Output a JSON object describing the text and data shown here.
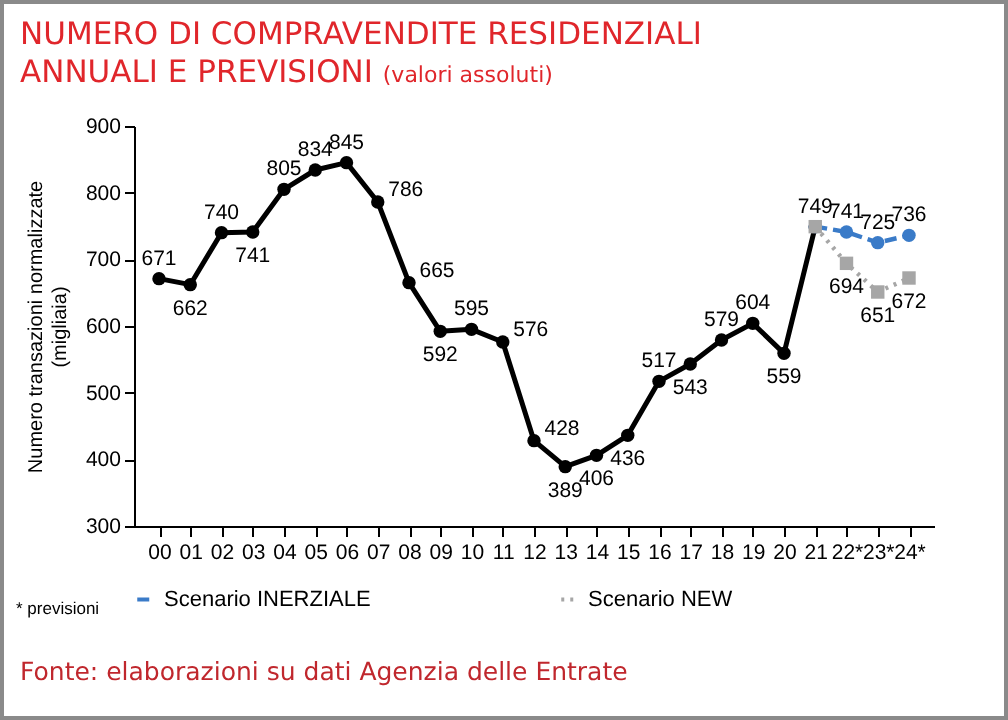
{
  "chart_data": {
    "type": "line",
    "title": "NUMERO DI COMPRAVENDITE RESIDENZIALI ANNUALI E PREVISIONI",
    "subtitle": "(valori assoluti)",
    "ylabel": "Numero transazioni normalizzate\n(migliaia)",
    "categories": [
      "00",
      "01",
      "02",
      "03",
      "04",
      "05",
      "06",
      "07",
      "08",
      "09",
      "10",
      "11",
      "12",
      "13",
      "14",
      "15",
      "16",
      "17",
      "18",
      "19",
      "20",
      "21",
      "22*",
      "23*",
      "24*"
    ],
    "ylim": [
      300,
      900
    ],
    "yticks": [
      300,
      400,
      500,
      600,
      700,
      800,
      900
    ],
    "grid": false,
    "legend": "bottom",
    "data_labels": true,
    "series": [
      {
        "color": "#000000",
        "marker": "circle",
        "line_style": "solid",
        "values": [
          671,
          662,
          740,
          741,
          805,
          834,
          845,
          786,
          665,
          592,
          595,
          576,
          428,
          389,
          406,
          436,
          517,
          543,
          579,
          604,
          559,
          749,
          null,
          null,
          null
        ]
      },
      {
        "name": "Scenario INERZIALE",
        "color": "#3a7bc8",
        "marker": "circle",
        "line_style": "dashed",
        "values": [
          null,
          null,
          null,
          null,
          null,
          null,
          null,
          null,
          null,
          null,
          null,
          null,
          null,
          null,
          null,
          null,
          null,
          null,
          null,
          null,
          null,
          749,
          741,
          725,
          736
        ],
        "value_labels": [
          null,
          null,
          null,
          null,
          null,
          null,
          null,
          null,
          null,
          null,
          null,
          null,
          null,
          null,
          null,
          null,
          null,
          null,
          null,
          null,
          null,
          null,
          "741",
          "725",
          "736"
        ]
      },
      {
        "name": "Scenario NEW",
        "color": "#a6a6a6",
        "marker": "square",
        "line_style": "dotted",
        "values": [
          null,
          null,
          null,
          null,
          null,
          null,
          null,
          null,
          null,
          null,
          null,
          null,
          null,
          null,
          null,
          null,
          null,
          null,
          null,
          null,
          null,
          749,
          694,
          651,
          672
        ],
        "value_labels": [
          null,
          null,
          null,
          null,
          null,
          null,
          null,
          null,
          null,
          null,
          null,
          null,
          null,
          null,
          null,
          null,
          null,
          null,
          null,
          null,
          null,
          null,
          "694",
          "651",
          "672"
        ]
      }
    ],
    "annotations": [
      "* previsioni",
      "Fonte: elaborazioni su dati Agenzia delle Entrate"
    ]
  }
}
